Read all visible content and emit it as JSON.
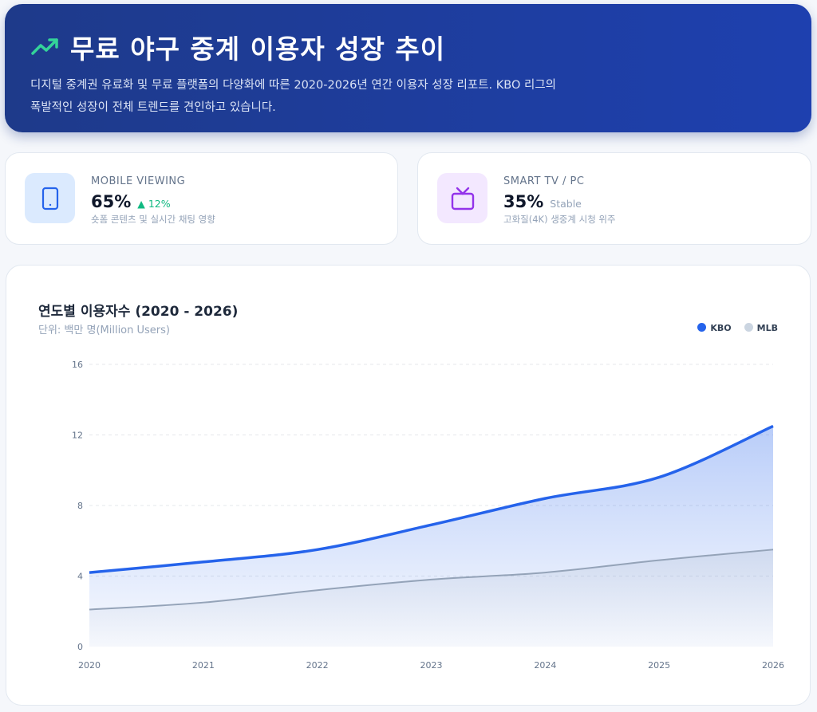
{
  "header": {
    "icon": "trending-up-icon",
    "title": "무료 야구 중계 이용자 성장 추이",
    "description": "디지털 중계권 유료화 및 무료 플랫폼의 다양화에 따른 2020-2026년 연간 이용자 성장 리포트. KBO 리그의 폭발적인 성장이 전체 트렌드를 견인하고 있습니다."
  },
  "stats": [
    {
      "icon": "smartphone-icon",
      "label": "MOBILE VIEWING",
      "value": "65%",
      "change": "▲ 12%",
      "note": "숏폼 콘텐츠 및 실시간 채팅 영향",
      "change_color": "#10b981"
    },
    {
      "icon": "tv-icon",
      "label": "SMART TV / PC",
      "value": "35%",
      "change": "Stable",
      "note": "고화질(4K) 생중계 시청 위주",
      "change_color": "#94a3b8"
    }
  ],
  "chart_data": {
    "type": "area",
    "title": "연도별 이용자수 (2020 - 2026)",
    "subtitle": "단위: 백만 명(Million Users)",
    "x": [
      "2020",
      "2021",
      "2022",
      "2023",
      "2024",
      "2025",
      "2026"
    ],
    "ylim": [
      0,
      16
    ],
    "yticks": [
      0,
      4,
      8,
      12,
      16
    ],
    "grid": true,
    "legend_position": "top-right",
    "series": [
      {
        "name": "KBO",
        "color": "#2563eb",
        "values": [
          4.2,
          4.8,
          5.5,
          6.9,
          8.4,
          9.6,
          12.5
        ]
      },
      {
        "name": "MLB",
        "color": "#cbd5e1",
        "values": [
          2.1,
          2.5,
          3.2,
          3.8,
          4.2,
          4.9,
          5.5
        ]
      }
    ]
  }
}
